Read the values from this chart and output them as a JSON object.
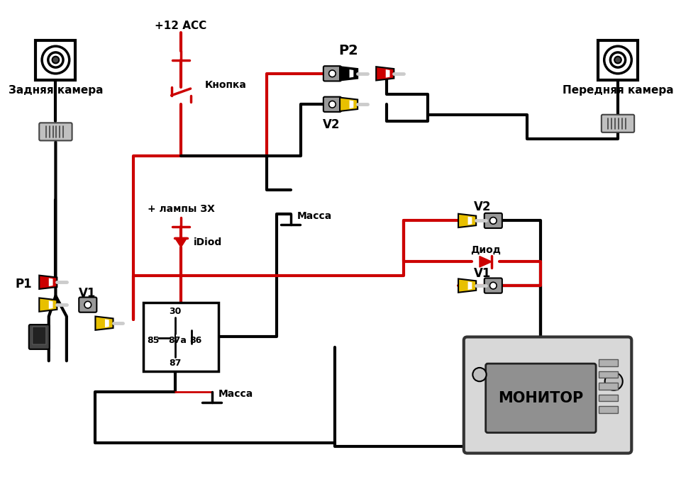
{
  "bg_color": "#ffffff",
  "label_rear_cam": "Задняя камера",
  "label_front_cam": "Передняя камера",
  "label_monitor": "МОНИТОР",
  "label_p1": "P1",
  "label_p2": "P2",
  "label_v1": "V1",
  "label_v2": "V2",
  "label_acc": "+12 ACC",
  "label_knopka": "Кнопка",
  "label_lampy": "+ лампы ЗХ",
  "label_idiod": "iDiod",
  "label_diod": "Диод",
  "label_massa": "Масса",
  "BLACK": "#000000",
  "RED": "#cc0000",
  "YELLOW": "#e8c000",
  "GRAY": "#888888",
  "DGRAY": "#444444",
  "LGray": "#bbbbbb",
  "WHITE": "#ffffff"
}
